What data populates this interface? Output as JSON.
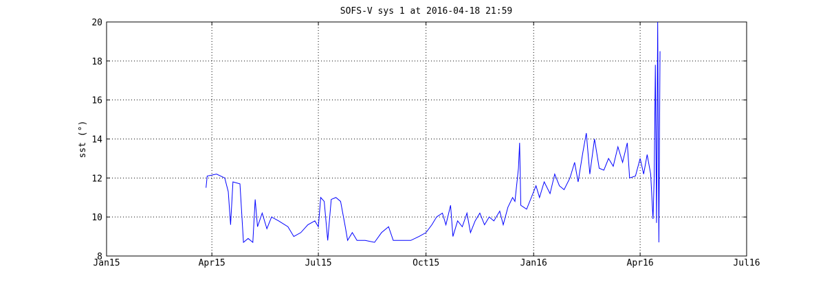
{
  "chart_data": {
    "type": "line",
    "title": "SOFS-V sys 1 at 2016-04-18 21:59",
    "y_label": "sst (°)",
    "xlim": [
      "2015-01-01",
      "2016-07-01"
    ],
    "xticks": [
      {
        "value": "2015-01-01",
        "label": "Jan15"
      },
      {
        "value": "2015-04-01",
        "label": "Apr15"
      },
      {
        "value": "2015-07-01",
        "label": "Jul15"
      },
      {
        "value": "2015-10-01",
        "label": "Oct15"
      },
      {
        "value": "2016-01-01",
        "label": "Jan16"
      },
      {
        "value": "2016-04-01",
        "label": "Apr16"
      },
      {
        "value": "2016-07-01",
        "label": "Jul16"
      }
    ],
    "ylim": [
      8,
      20
    ],
    "yticks": [
      8,
      10,
      12,
      14,
      16,
      18,
      20
    ],
    "grid": true,
    "x": [
      "2015-03-27",
      "2015-03-28",
      "2015-04-05",
      "2015-04-12",
      "2015-04-15",
      "2015-04-17",
      "2015-04-19",
      "2015-04-25",
      "2015-04-28",
      "2015-05-02",
      "2015-05-06",
      "2015-05-08",
      "2015-05-10",
      "2015-05-14",
      "2015-05-18",
      "2015-05-22",
      "2015-05-28",
      "2015-06-05",
      "2015-06-10",
      "2015-06-16",
      "2015-06-22",
      "2015-06-28",
      "2015-07-01",
      "2015-07-03",
      "2015-07-06",
      "2015-07-09",
      "2015-07-12",
      "2015-07-16",
      "2015-07-20",
      "2015-07-24",
      "2015-07-26",
      "2015-07-30",
      "2015-08-03",
      "2015-08-10",
      "2015-08-18",
      "2015-08-24",
      "2015-08-30",
      "2015-09-03",
      "2015-09-10",
      "2015-09-18",
      "2015-09-25",
      "2015-10-01",
      "2015-10-06",
      "2015-10-10",
      "2015-10-15",
      "2015-10-18",
      "2015-10-22",
      "2015-10-24",
      "2015-10-28",
      "2015-11-01",
      "2015-11-05",
      "2015-11-08",
      "2015-11-12",
      "2015-11-16",
      "2015-11-20",
      "2015-11-24",
      "2015-11-28",
      "2015-12-03",
      "2015-12-06",
      "2015-12-10",
      "2015-12-14",
      "2015-12-16",
      "2015-12-19",
      "2015-12-20",
      "2015-12-21",
      "2015-12-26",
      "2015-12-30",
      "2016-01-03",
      "2016-01-06",
      "2016-01-10",
      "2016-01-15",
      "2016-01-19",
      "2016-01-23",
      "2016-01-27",
      "2016-02-01",
      "2016-02-05",
      "2016-02-08",
      "2016-02-12",
      "2016-02-15",
      "2016-02-18",
      "2016-02-22",
      "2016-02-26",
      "2016-03-01",
      "2016-03-05",
      "2016-03-09",
      "2016-03-13",
      "2016-03-17",
      "2016-03-21",
      "2016-03-23",
      "2016-03-28",
      "2016-04-01",
      "2016-04-04",
      "2016-04-07",
      "2016-04-10",
      "2016-04-12",
      "2016-04-13",
      "2016-04-14",
      "2016-04-15",
      "2016-04-16",
      "2016-04-17",
      "2016-04-18"
    ],
    "series": [
      {
        "name": "sst",
        "color": "#0000ff",
        "values": [
          11.5,
          12.1,
          12.2,
          12.0,
          11.3,
          9.6,
          11.8,
          11.7,
          8.7,
          8.9,
          8.7,
          10.9,
          9.5,
          10.2,
          9.4,
          10.0,
          9.8,
          9.5,
          9.0,
          9.2,
          9.6,
          9.8,
          9.5,
          11.0,
          10.8,
          8.8,
          10.9,
          11.0,
          10.8,
          9.5,
          8.8,
          9.2,
          8.8,
          8.8,
          8.7,
          9.2,
          9.5,
          8.8,
          8.8,
          8.8,
          9.0,
          9.2,
          9.6,
          10.0,
          10.2,
          9.6,
          10.6,
          9.0,
          9.8,
          9.5,
          10.2,
          9.2,
          9.8,
          10.2,
          9.6,
          10.0,
          9.8,
          10.3,
          9.6,
          10.5,
          11.0,
          10.8,
          12.5,
          13.8,
          10.6,
          10.4,
          11.0,
          11.6,
          11.0,
          11.8,
          11.2,
          12.2,
          11.6,
          11.4,
          12.0,
          12.8,
          11.8,
          13.3,
          14.3,
          12.2,
          14.0,
          12.5,
          12.4,
          13.0,
          12.6,
          13.6,
          12.8,
          13.8,
          12.0,
          12.1,
          13.0,
          12.2,
          13.2,
          12.2,
          9.9,
          12.0,
          17.8,
          9.7,
          20.0,
          8.7,
          18.5
        ]
      }
    ]
  }
}
